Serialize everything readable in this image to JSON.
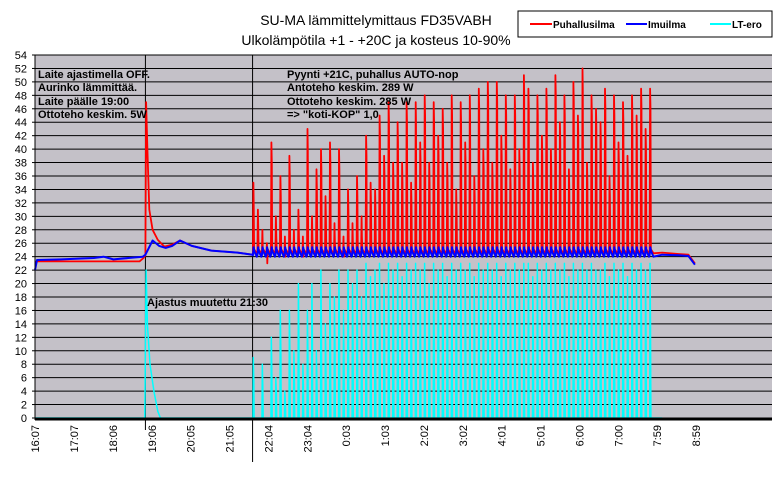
{
  "chart_data": {
    "type": "line",
    "title": "SU-MA lämmittelymittaus FD35VABH",
    "subtitle": "Ulkolämpötila +1 - +20C ja kosteus 10-90%",
    "xlabel": "",
    "ylabel": "",
    "ylim": [
      0,
      54
    ],
    "ytick_step": 2,
    "x_unit": "minutes since 16:07",
    "xlim": [
      0,
      1128
    ],
    "x_tick_labels": [
      "16:07",
      "17:07",
      "18:06",
      "19:06",
      "20:05",
      "21:05",
      "22:04",
      "23:04",
      "0:03",
      "1:03",
      "2:02",
      "3:02",
      "4:01",
      "5:01",
      "6:00",
      "7:00",
      "7:59",
      "8:59"
    ],
    "x_tick_positions": [
      0,
      60,
      119,
      179,
      238,
      298,
      357,
      417,
      476,
      536,
      595,
      655,
      714,
      774,
      833,
      893,
      952,
      1012
    ],
    "grid": true,
    "legend": {
      "placement": "top-right",
      "entries": [
        {
          "name": "Puhallusilma",
          "color": "#ff0000"
        },
        {
          "name": "Imuilma",
          "color": "#0000ff"
        },
        {
          "name": "LT-ero",
          "color": "#00ffff"
        }
      ]
    },
    "vertical_markers": [
      169,
      333
    ],
    "annotations": {
      "left": [
        "Laite ajastimella OFF.",
        "Aurinko lämmittää.",
        "Laite päälle 19:00",
        "Ottoteho keskim. 5W"
      ],
      "right": [
        "Pyynti +21C, puhallus AUTO-nop",
        "Antoteho keskim. 289 W",
        "Ottoteho keskim. 285 W",
        "=> \"koti-KOP\" 1,0"
      ],
      "marker": "Ajastus muutettu 21:30"
    },
    "series": [
      {
        "name": "Puhallusilma",
        "color": "#ff0000",
        "points": [
          [
            0,
            23.2
          ],
          [
            5,
            23.3
          ],
          [
            160,
            23.3
          ],
          [
            166,
            23.8
          ],
          [
            169,
            24.2
          ],
          [
            170,
            47
          ],
          [
            172,
            40
          ],
          [
            175,
            31
          ],
          [
            180,
            28
          ],
          [
            188,
            26.5
          ],
          [
            198,
            25.5
          ],
          [
            210,
            25.8
          ],
          [
            222,
            26.4
          ],
          [
            240,
            25.6
          ],
          [
            270,
            24.9
          ],
          [
            310,
            24.6
          ],
          [
            333,
            24.3
          ]
        ]
      },
      {
        "name": "Imuilma",
        "color": "#0000ff",
        "points": [
          [
            0,
            22
          ],
          [
            3,
            23.5
          ],
          [
            40,
            23.6
          ],
          [
            90,
            23.8
          ],
          [
            105,
            24
          ],
          [
            120,
            23.6
          ],
          [
            165,
            24
          ],
          [
            169,
            24.3
          ],
          [
            180,
            26.4
          ],
          [
            190,
            25.6
          ],
          [
            200,
            25.3
          ],
          [
            210,
            25.6
          ],
          [
            222,
            26.4
          ],
          [
            240,
            25.6
          ],
          [
            270,
            24.9
          ],
          [
            310,
            24.6
          ],
          [
            333,
            24.3
          ]
        ]
      },
      {
        "name": "LT-ero",
        "color": "#00ffff",
        "points": [
          [
            0,
            0
          ],
          [
            168,
            0
          ],
          [
            170,
            22
          ],
          [
            172,
            14
          ],
          [
            176,
            8
          ],
          [
            182,
            4
          ],
          [
            188,
            1
          ],
          [
            192,
            0
          ],
          [
            333,
            0
          ]
        ]
      }
    ],
    "cycling": {
      "start": 333,
      "period": 6.9,
      "base_red": 24.5,
      "base_blue": 24.2,
      "blue_amp": 1.2,
      "red_peaks": [
        35,
        31,
        28,
        26,
        41,
        30,
        36,
        27,
        39,
        28,
        31,
        27,
        43,
        30,
        37,
        40,
        33,
        41,
        29,
        40,
        27,
        34,
        29,
        36,
        30,
        42,
        35,
        34,
        45,
        39,
        47,
        38,
        44,
        38,
        47,
        35,
        47,
        41,
        48,
        38,
        47,
        42,
        46,
        38,
        48,
        34,
        47,
        41,
        48,
        36,
        49,
        40,
        50,
        38,
        50,
        42,
        48,
        37,
        48,
        40,
        51,
        49,
        38,
        48,
        42,
        49,
        40,
        51,
        44,
        48,
        37,
        50,
        45,
        52,
        38,
        48,
        46,
        44,
        49,
        36,
        48,
        41,
        47,
        39,
        48,
        45,
        49,
        43,
        49
      ],
      "lt_peaks": [
        9,
        0,
        8,
        0,
        12,
        6,
        16,
        4,
        16,
        10,
        20,
        8,
        16,
        20,
        10,
        22,
        14,
        20,
        18,
        22,
        16,
        22,
        20,
        22,
        18,
        23,
        21,
        22,
        23,
        20,
        23,
        22,
        23,
        21,
        23,
        22,
        23,
        22,
        23,
        20,
        23,
        22,
        23,
        21,
        23,
        22,
        23,
        22,
        23,
        21,
        23,
        22,
        23,
        22,
        23,
        21,
        23,
        22,
        23,
        22,
        23,
        23,
        21,
        23,
        22,
        23,
        22,
        23,
        22,
        23,
        21,
        23,
        22,
        23,
        22,
        23,
        22,
        22,
        23,
        21,
        23,
        22,
        23,
        21,
        23,
        22,
        23,
        22,
        23
      ],
      "end_points_red": [
        [
          960,
          24.6
        ],
        [
          985,
          24.4
        ],
        [
          1000,
          24.3
        ],
        [
          1010,
          23
        ]
      ],
      "end_points_blue": [
        [
          960,
          24.3
        ],
        [
          985,
          24.2
        ],
        [
          1000,
          24.1
        ],
        [
          1010,
          22.8
        ]
      ]
    }
  }
}
